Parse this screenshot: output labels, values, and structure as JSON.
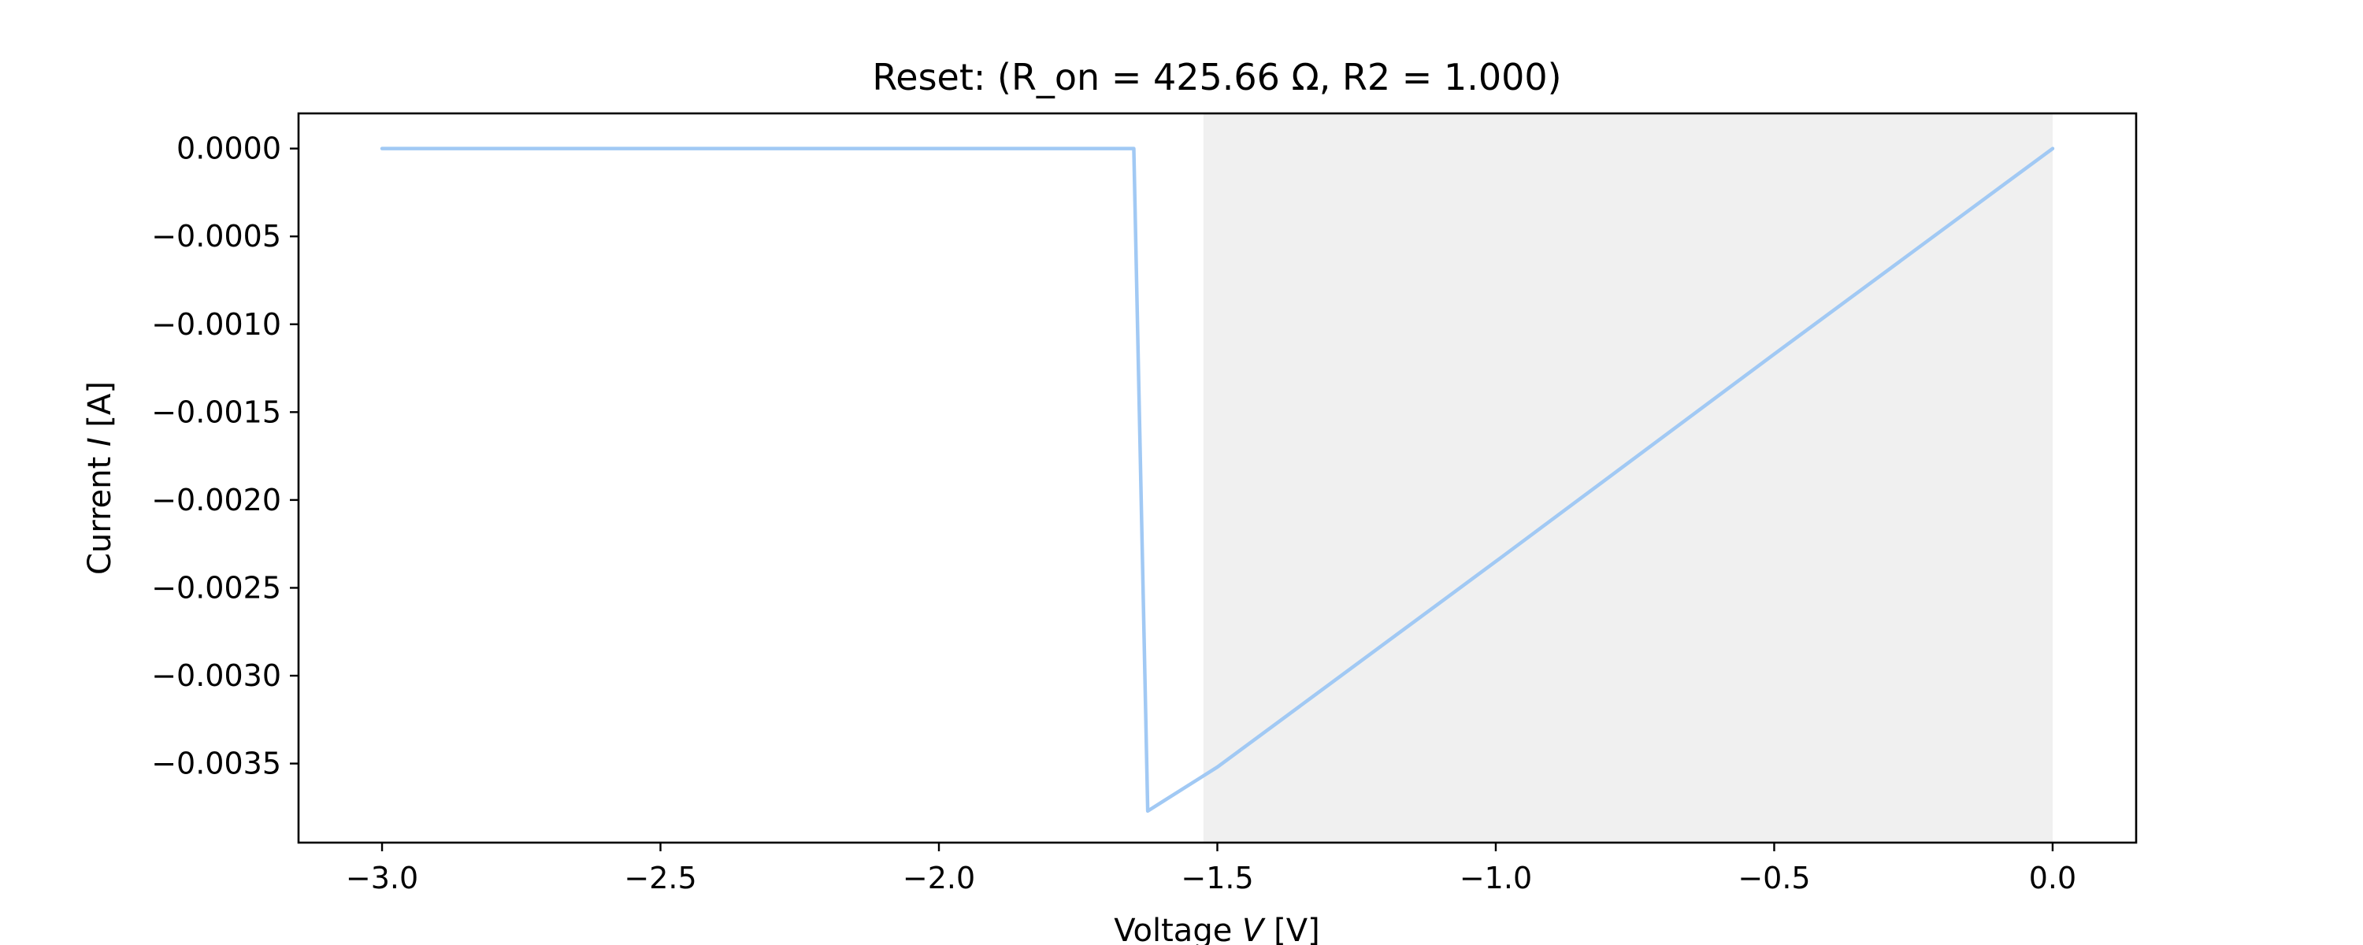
{
  "chart_data": {
    "type": "line",
    "title": "Reset: (R_on = 425.66 Ω, R2 = 1.000)",
    "xlabel": {
      "prefix": "Voltage ",
      "var": "V",
      "suffix": " [V]"
    },
    "ylabel": {
      "prefix": "Current ",
      "var": "I",
      "suffix": " [A]"
    },
    "xlim": [
      -3.15,
      0.15
    ],
    "ylim": [
      -0.00395,
      0.0002
    ],
    "xticks": [
      -3.0,
      -2.5,
      -2.0,
      -1.5,
      -1.0,
      -0.5,
      0.0
    ],
    "xtick_labels": [
      "−3.0",
      "−2.5",
      "−2.0",
      "−1.5",
      "−1.0",
      "−0.5",
      "0.0"
    ],
    "yticks": [
      0.0,
      -0.0005,
      -0.001,
      -0.0015,
      -0.002,
      -0.0025,
      -0.003,
      -0.0035
    ],
    "ytick_labels": [
      "0.0000",
      "−0.0005",
      "−0.0010",
      "−0.0015",
      "−0.0020",
      "−0.0025",
      "−0.0030",
      "−0.0035"
    ],
    "grid": false,
    "shaded_region": {
      "x_start": -1.525,
      "x_end": 0.0,
      "color": "#f0f0f0"
    },
    "series": [
      {
        "name": "reset",
        "color": "#a1c9f4",
        "x": [
          -3.0,
          -1.65,
          -1.625,
          -1.6,
          -1.5,
          -1.0,
          -0.5,
          0.0
        ],
        "y": [
          0.0,
          0.0,
          -0.00377,
          -0.00372,
          -0.00352,
          -0.00235,
          -0.00117,
          0.0
        ]
      }
    ]
  }
}
